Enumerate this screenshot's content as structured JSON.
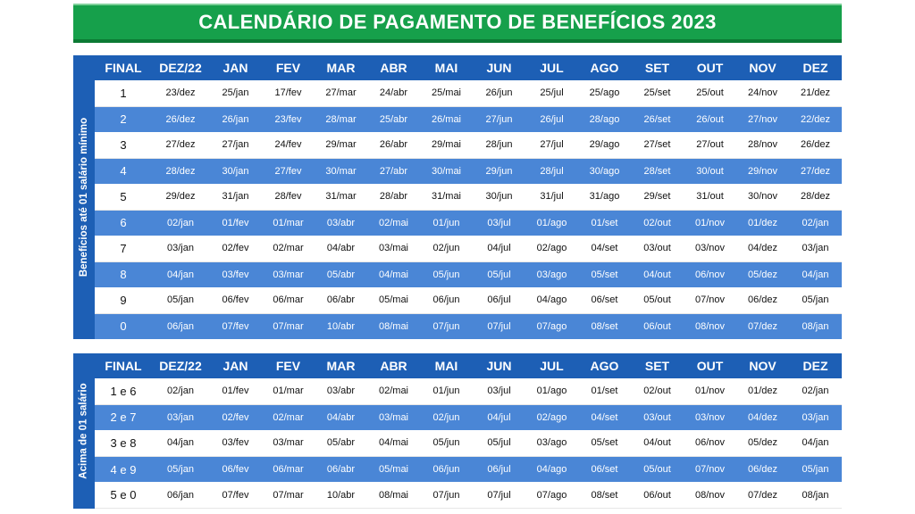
{
  "title": "CALENDÁRIO DE PAGAMENTO DE BENEFÍCIOS 2023",
  "headers": [
    "FINAL",
    "DEZ/22",
    "JAN",
    "FEV",
    "MAR",
    "ABR",
    "MAI",
    "JUN",
    "JUL",
    "AGO",
    "SET",
    "OUT",
    "NOV",
    "DEZ"
  ],
  "table1": {
    "side_label": "Benefícios até 01 salário mínimo",
    "rows": [
      [
        "1",
        "23/dez",
        "25/jan",
        "17/fev",
        "27/mar",
        "24/abr",
        "25/mai",
        "26/jun",
        "25/jul",
        "25/ago",
        "25/set",
        "25/out",
        "24/nov",
        "21/dez"
      ],
      [
        "2",
        "26/dez",
        "26/jan",
        "23/fev",
        "28/mar",
        "25/abr",
        "26/mai",
        "27/jun",
        "26/jul",
        "28/ago",
        "26/set",
        "26/out",
        "27/nov",
        "22/dez"
      ],
      [
        "3",
        "27/dez",
        "27/jan",
        "24/fev",
        "29/mar",
        "26/abr",
        "29/mai",
        "28/jun",
        "27/jul",
        "29/ago",
        "27/set",
        "27/out",
        "28/nov",
        "26/dez"
      ],
      [
        "4",
        "28/dez",
        "30/jan",
        "27/fev",
        "30/mar",
        "27/abr",
        "30/mai",
        "29/jun",
        "28/jul",
        "30/ago",
        "28/set",
        "30/out",
        "29/nov",
        "27/dez"
      ],
      [
        "5",
        "29/dez",
        "31/jan",
        "28/fev",
        "31/mar",
        "28/abr",
        "31/mai",
        "30/jun",
        "31/jul",
        "31/ago",
        "29/set",
        "31/out",
        "30/nov",
        "28/dez"
      ],
      [
        "6",
        "02/jan",
        "01/fev",
        "01/mar",
        "03/abr",
        "02/mai",
        "01/jun",
        "03/jul",
        "01/ago",
        "01/set",
        "02/out",
        "01/nov",
        "01/dez",
        "02/jan"
      ],
      [
        "7",
        "03/jan",
        "02/fev",
        "02/mar",
        "04/abr",
        "03/mai",
        "02/jun",
        "04/jul",
        "02/ago",
        "04/set",
        "03/out",
        "03/nov",
        "04/dez",
        "03/jan"
      ],
      [
        "8",
        "04/jan",
        "03/fev",
        "03/mar",
        "05/abr",
        "04/mai",
        "05/jun",
        "05/jul",
        "03/ago",
        "05/set",
        "04/out",
        "06/nov",
        "05/dez",
        "04/jan"
      ],
      [
        "9",
        "05/jan",
        "06/fev",
        "06/mar",
        "06/abr",
        "05/mai",
        "06/jun",
        "06/jul",
        "04/ago",
        "06/set",
        "05/out",
        "07/nov",
        "06/dez",
        "05/jan"
      ],
      [
        "0",
        "06/jan",
        "07/fev",
        "07/mar",
        "10/abr",
        "08/mai",
        "07/jun",
        "07/jul",
        "07/ago",
        "08/set",
        "06/out",
        "08/nov",
        "07/dez",
        "08/jan"
      ]
    ]
  },
  "table2": {
    "side_label": "Acima de 01 salário",
    "rows": [
      [
        "1 e 6",
        "02/jan",
        "01/fev",
        "01/mar",
        "03/abr",
        "02/mai",
        "01/jun",
        "03/jul",
        "01/ago",
        "01/set",
        "02/out",
        "01/nov",
        "01/dez",
        "02/jan"
      ],
      [
        "2 e 7",
        "03/jan",
        "02/fev",
        "02/mar",
        "04/abr",
        "03/mai",
        "02/jun",
        "04/jul",
        "02/ago",
        "04/set",
        "03/out",
        "03/nov",
        "04/dez",
        "03/jan"
      ],
      [
        "3 e 8",
        "04/jan",
        "03/fev",
        "03/mar",
        "05/abr",
        "04/mai",
        "05/jun",
        "05/jul",
        "03/ago",
        "05/set",
        "04/out",
        "06/nov",
        "05/dez",
        "04/jan"
      ],
      [
        "4 e 9",
        "05/jan",
        "06/fev",
        "06/mar",
        "06/abr",
        "05/mai",
        "06/jun",
        "06/jul",
        "04/ago",
        "06/set",
        "05/out",
        "07/nov",
        "06/dez",
        "05/jan"
      ],
      [
        "5 e 0",
        "06/jan",
        "07/fev",
        "07/mar",
        "10/abr",
        "08/mai",
        "07/jun",
        "07/jul",
        "07/ago",
        "08/set",
        "06/out",
        "08/nov",
        "07/dez",
        "08/jan"
      ]
    ]
  }
}
